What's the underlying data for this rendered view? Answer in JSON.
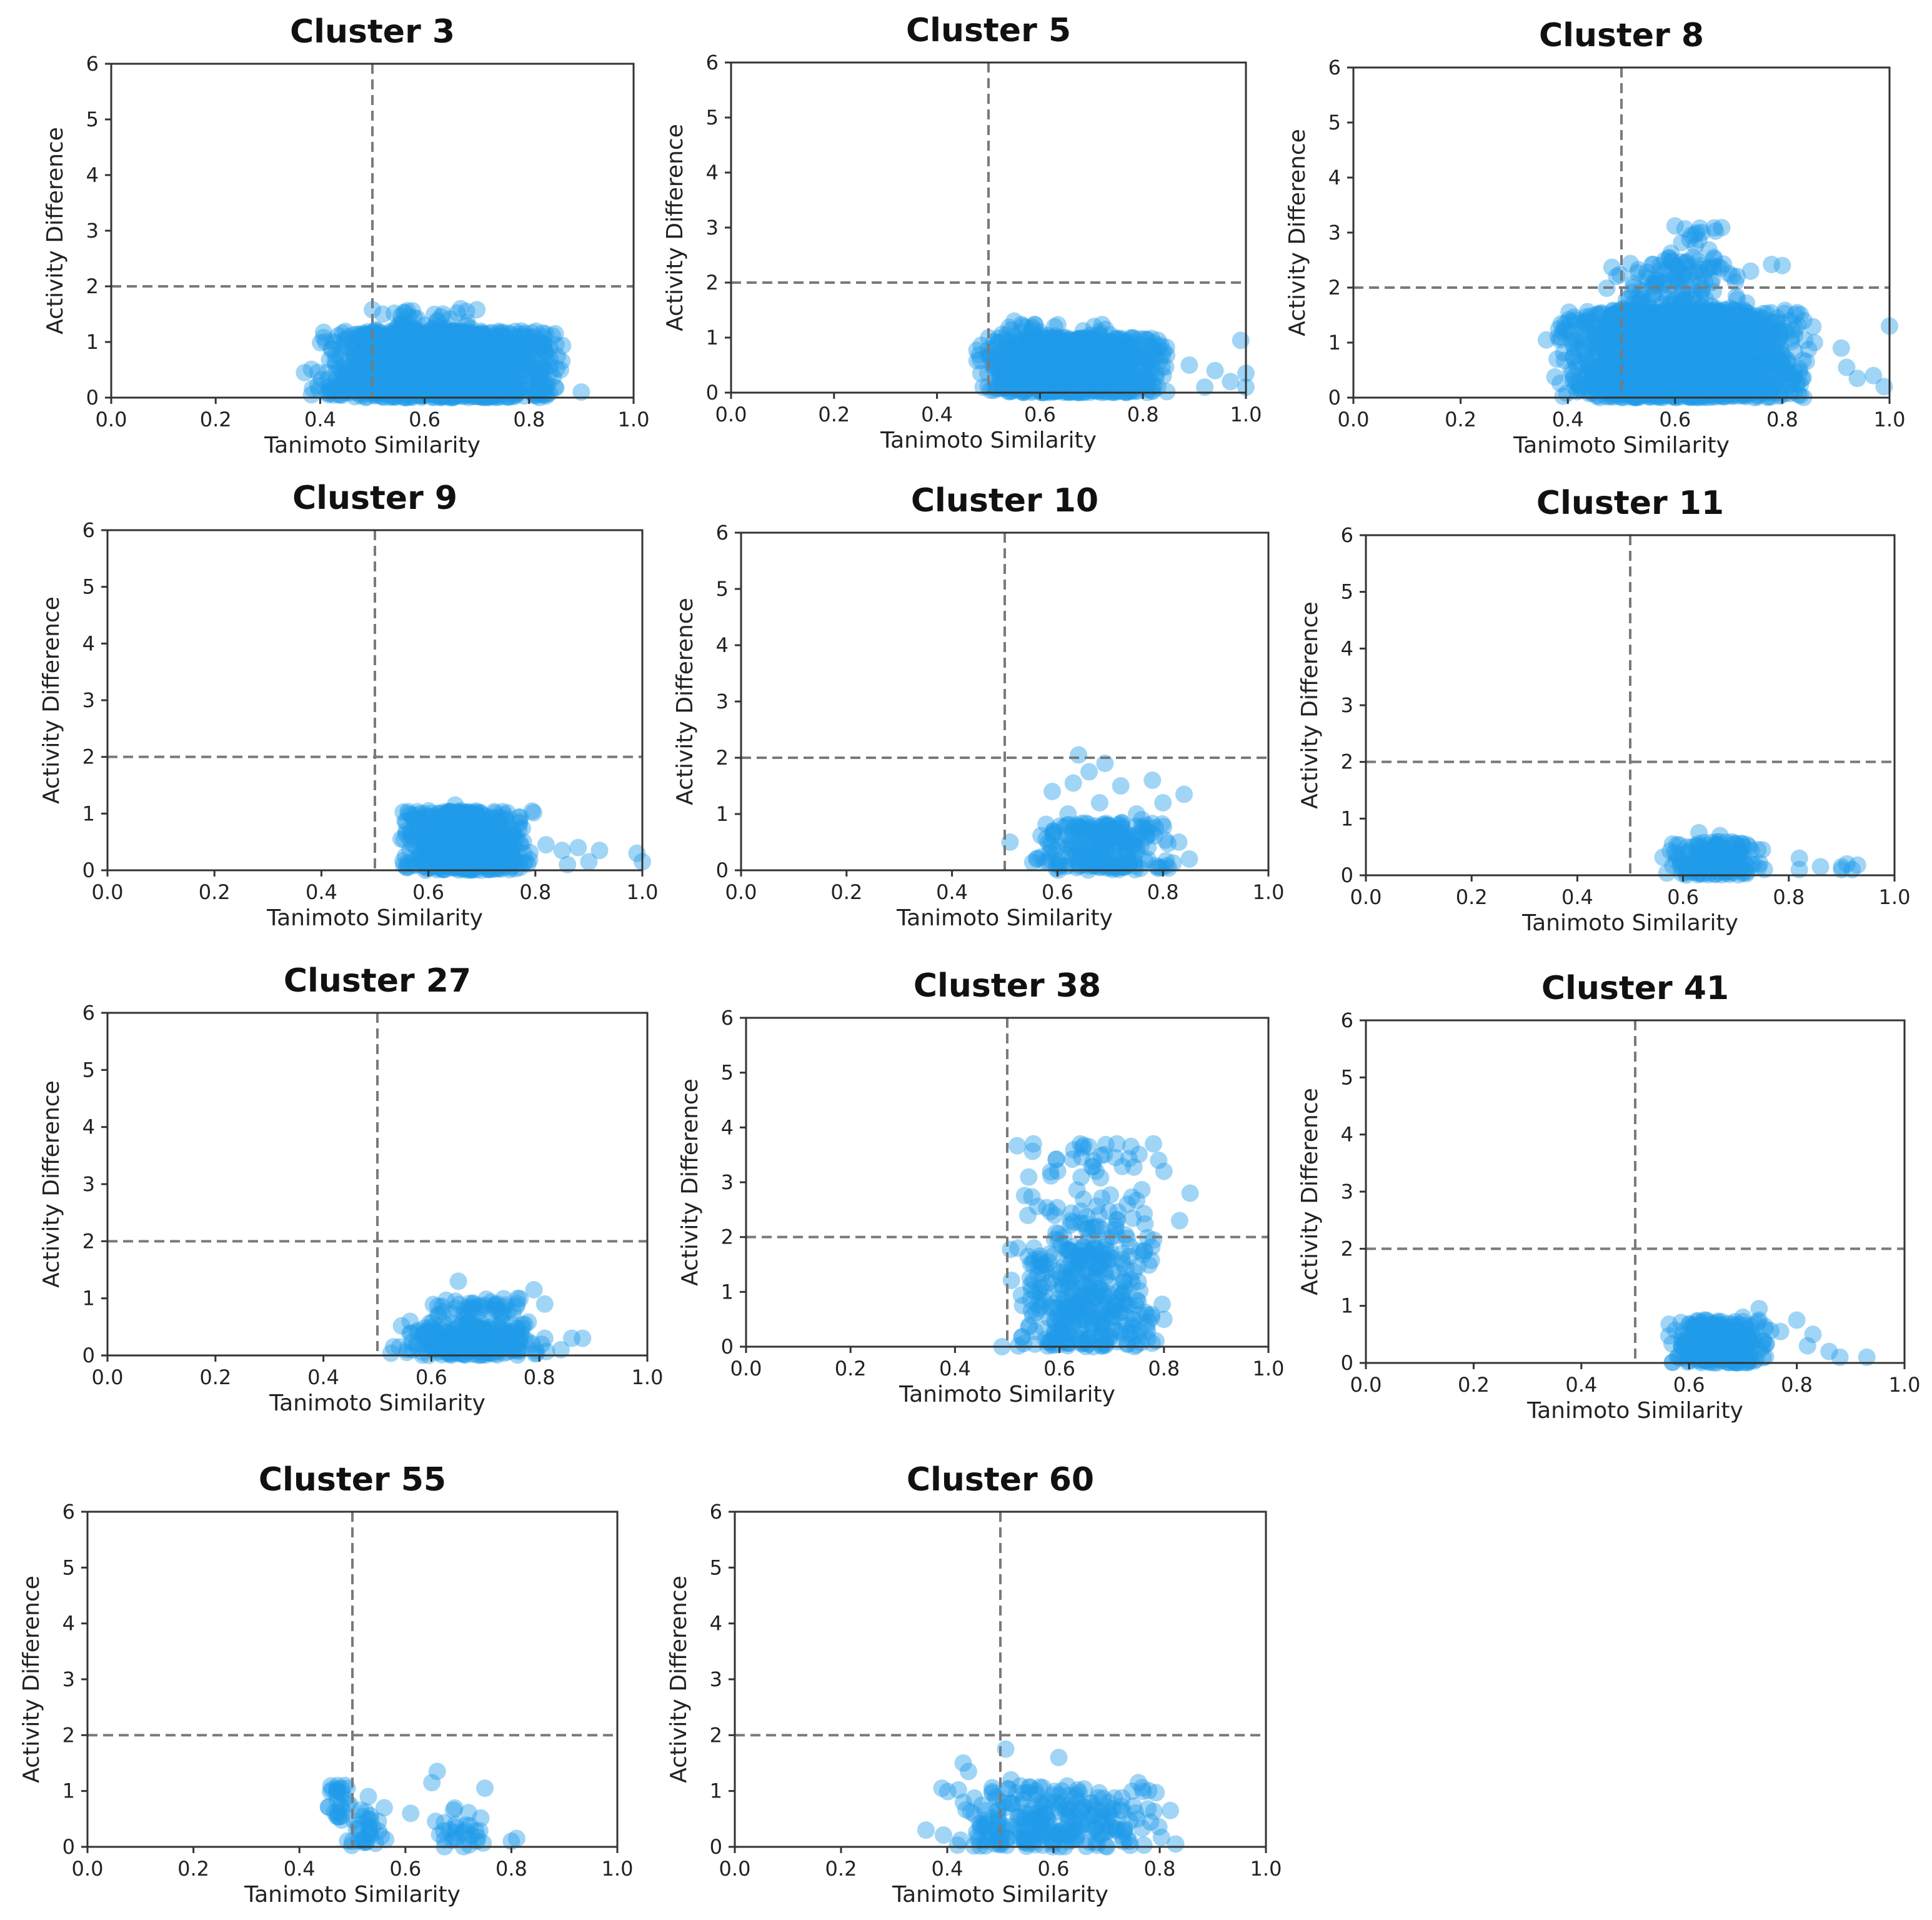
{
  "chart_data": [
    {
      "type": "scatter",
      "title": "Cluster 3",
      "xlabel": "Tanimoto Similarity",
      "ylabel": "Activity Difference",
      "xlim": [
        0.0,
        1.0
      ],
      "ylim": [
        0,
        6
      ],
      "xticks": [
        "0.0",
        "0.2",
        "0.4",
        "0.6",
        "0.8",
        "1.0"
      ],
      "yticks": [
        "0",
        "1",
        "2",
        "3",
        "4",
        "5",
        "6"
      ],
      "thresholds": {
        "x": 0.5,
        "y": 2
      },
      "clusters": [
        {
          "x": [
            0.38,
            0.88
          ],
          "y": [
            0,
            1.2
          ],
          "n": 1400
        },
        {
          "x": [
            0.5,
            0.72
          ],
          "y": [
            0.9,
            1.6
          ],
          "n": 90
        }
      ],
      "points": [
        [
          0.5,
          1.58
        ],
        [
          0.52,
          1.5
        ],
        [
          0.68,
          1.55
        ],
        [
          0.7,
          1.58
        ],
        [
          0.9,
          0.1
        ],
        [
          0.86,
          0.5
        ],
        [
          0.84,
          0.7
        ],
        [
          0.37,
          0.45
        ]
      ]
    },
    {
      "type": "scatter",
      "title": "Cluster 5",
      "xlabel": "Tanimoto Similarity",
      "ylabel": "Activity Difference",
      "xlim": [
        0.0,
        1.0
      ],
      "ylim": [
        0,
        6
      ],
      "xticks": [
        "0.0",
        "0.2",
        "0.4",
        "0.6",
        "0.8",
        "1.0"
      ],
      "yticks": [
        "0",
        "1",
        "2",
        "3",
        "4",
        "5",
        "6"
      ],
      "thresholds": {
        "x": 0.5,
        "y": 2
      },
      "clusters": [
        {
          "x": [
            0.47,
            0.86
          ],
          "y": [
            0,
            1.0
          ],
          "n": 1100
        },
        {
          "x": [
            0.5,
            0.75
          ],
          "y": [
            0.8,
            1.25
          ],
          "n": 60
        }
      ],
      "points": [
        [
          0.55,
          1.3
        ],
        [
          0.99,
          0.95
        ],
        [
          1.0,
          0.35
        ],
        [
          1.0,
          0.1
        ],
        [
          0.97,
          0.2
        ],
        [
          0.94,
          0.4
        ],
        [
          0.89,
          0.5
        ],
        [
          0.92,
          0.1
        ]
      ]
    },
    {
      "type": "scatter",
      "title": "Cluster 8",
      "xlabel": "Tanimoto Similarity",
      "ylabel": "Activity Difference",
      "xlim": [
        0.0,
        1.0
      ],
      "ylim": [
        0,
        6
      ],
      "xticks": [
        "0.0",
        "0.2",
        "0.4",
        "0.6",
        "0.8",
        "1.0"
      ],
      "yticks": [
        "0",
        "1",
        "2",
        "3",
        "4",
        "5",
        "6"
      ],
      "thresholds": {
        "x": 0.5,
        "y": 2
      },
      "clusters": [
        {
          "x": [
            0.37,
            0.86
          ],
          "y": [
            0,
            1.6
          ],
          "n": 1800
        },
        {
          "x": [
            0.46,
            0.75
          ],
          "y": [
            1.3,
            2.5
          ],
          "n": 180
        },
        {
          "x": [
            0.56,
            0.7
          ],
          "y": [
            2.3,
            3.1
          ],
          "n": 25
        }
      ],
      "points": [
        [
          0.6,
          3.12
        ],
        [
          0.65,
          3.0
        ],
        [
          0.63,
          2.95
        ],
        [
          0.8,
          2.4
        ],
        [
          0.78,
          2.42
        ],
        [
          0.91,
          0.9
        ],
        [
          0.92,
          0.55
        ],
        [
          0.94,
          0.35
        ],
        [
          0.99,
          0.2
        ],
        [
          1.0,
          1.3
        ],
        [
          0.97,
          0.4
        ],
        [
          0.36,
          1.05
        ],
        [
          0.38,
          0.7
        ],
        [
          0.86,
          1.0
        ],
        [
          0.84,
          1.4
        ]
      ]
    },
    {
      "type": "scatter",
      "title": "Cluster 9",
      "xlabel": "Tanimoto Similarity",
      "ylabel": "Activity Difference",
      "xlim": [
        0.0,
        1.0
      ],
      "ylim": [
        0,
        6
      ],
      "xticks": [
        "0.0",
        "0.2",
        "0.4",
        "0.6",
        "0.8",
        "1.0"
      ],
      "yticks": [
        "0",
        "1",
        "2",
        "3",
        "4",
        "5",
        "6"
      ],
      "thresholds": {
        "x": 0.5,
        "y": 2
      },
      "clusters": [
        {
          "x": [
            0.54,
            0.8
          ],
          "y": [
            0,
            1.05
          ],
          "n": 650
        }
      ],
      "points": [
        [
          0.65,
          1.15
        ],
        [
          0.85,
          0.35
        ],
        [
          0.88,
          0.4
        ],
        [
          0.92,
          0.35
        ],
        [
          0.99,
          0.3
        ],
        [
          1.0,
          0.15
        ],
        [
          0.9,
          0.15
        ],
        [
          0.82,
          0.45
        ],
        [
          0.86,
          0.1
        ]
      ]
    },
    {
      "type": "scatter",
      "title": "Cluster 10",
      "xlabel": "Tanimoto Similarity",
      "ylabel": "Activity Difference",
      "xlim": [
        0.0,
        1.0
      ],
      "ylim": [
        0,
        6
      ],
      "xticks": [
        "0.0",
        "0.2",
        "0.4",
        "0.6",
        "0.8",
        "1.0"
      ],
      "yticks": [
        "0",
        "1",
        "2",
        "3",
        "4",
        "5",
        "6"
      ],
      "thresholds": {
        "x": 0.5,
        "y": 2
      },
      "clusters": [
        {
          "x": [
            0.55,
            0.84
          ],
          "y": [
            0,
            0.85
          ],
          "n": 230
        }
      ],
      "points": [
        [
          0.64,
          2.05
        ],
        [
          0.69,
          1.9
        ],
        [
          0.66,
          1.75
        ],
        [
          0.63,
          1.55
        ],
        [
          0.72,
          1.5
        ],
        [
          0.59,
          1.4
        ],
        [
          0.78,
          1.6
        ],
        [
          0.84,
          1.35
        ],
        [
          0.8,
          1.2
        ],
        [
          0.51,
          0.5
        ],
        [
          0.68,
          1.2
        ],
        [
          0.75,
          1.0
        ],
        [
          0.62,
          1.0
        ],
        [
          0.85,
          0.2
        ],
        [
          0.83,
          0.5
        ],
        [
          0.76,
          0.9
        ]
      ]
    },
    {
      "type": "scatter",
      "title": "Cluster 11",
      "xlabel": "Tanimoto Similarity",
      "ylabel": "Activity Difference",
      "xlim": [
        0.0,
        1.0
      ],
      "ylim": [
        0,
        6
      ],
      "xticks": [
        "0.0",
        "0.2",
        "0.4",
        "0.6",
        "0.8",
        "1.0"
      ],
      "yticks": [
        "0",
        "1",
        "2",
        "3",
        "4",
        "5",
        "6"
      ],
      "thresholds": {
        "x": 0.5,
        "y": 2
      },
      "clusters": [
        {
          "x": [
            0.56,
            0.76
          ],
          "y": [
            0,
            0.6
          ],
          "n": 170
        }
      ],
      "points": [
        [
          0.63,
          0.75
        ],
        [
          0.67,
          0.7
        ],
        [
          0.75,
          0.45
        ],
        [
          0.82,
          0.3
        ],
        [
          0.82,
          0.1
        ],
        [
          0.86,
          0.15
        ],
        [
          0.9,
          0.15
        ],
        [
          0.91,
          0.2
        ],
        [
          0.92,
          0.1
        ],
        [
          0.9,
          0.1
        ],
        [
          0.93,
          0.18
        ],
        [
          0.58,
          0.55
        ]
      ]
    },
    {
      "type": "scatter",
      "title": "Cluster 27",
      "xlabel": "Tanimoto Similarity",
      "ylabel": "Activity Difference",
      "xlim": [
        0.0,
        1.0
      ],
      "ylim": [
        0,
        6
      ],
      "xticks": [
        "0.0",
        "0.2",
        "0.4",
        "0.6",
        "0.8",
        "1.0"
      ],
      "yticks": [
        "0",
        "1",
        "2",
        "3",
        "4",
        "5",
        "6"
      ],
      "thresholds": {
        "x": 0.5,
        "y": 2
      },
      "clusters": [
        {
          "x": [
            0.52,
            0.82
          ],
          "y": [
            0,
            0.6
          ],
          "n": 260
        },
        {
          "x": [
            0.57,
            0.78
          ],
          "y": [
            0.7,
            1.0
          ],
          "n": 45
        }
      ],
      "points": [
        [
          0.65,
          1.3
        ],
        [
          0.79,
          1.15
        ],
        [
          0.81,
          0.9
        ],
        [
          0.86,
          0.3
        ],
        [
          0.88,
          0.3
        ],
        [
          0.84,
          0.1
        ],
        [
          0.53,
          0.15
        ],
        [
          0.81,
          0.3
        ],
        [
          0.76,
          1.0
        ]
      ]
    },
    {
      "type": "scatter",
      "title": "Cluster 38",
      "xlabel": "Tanimoto Similarity",
      "ylabel": "Activity Difference",
      "xlim": [
        0.0,
        1.0
      ],
      "ylim": [
        0,
        6
      ],
      "xticks": [
        "0.0",
        "0.2",
        "0.4",
        "0.6",
        "0.8",
        "1.0"
      ],
      "yticks": [
        "0",
        "1",
        "2",
        "3",
        "4",
        "5",
        "6"
      ],
      "thresholds": {
        "x": 0.5,
        "y": 2
      },
      "clusters": [
        {
          "x": [
            0.5,
            0.8
          ],
          "y": [
            0,
            1.8
          ],
          "n": 330
        },
        {
          "x": [
            0.5,
            0.8
          ],
          "y": [
            1.8,
            3.7
          ],
          "n": 90
        }
      ],
      "points": [
        [
          0.55,
          3.7
        ],
        [
          0.64,
          3.7
        ],
        [
          0.71,
          3.7
        ],
        [
          0.78,
          3.7
        ],
        [
          0.79,
          3.4
        ],
        [
          0.8,
          3.2
        ],
        [
          0.85,
          2.8
        ],
        [
          0.83,
          2.3
        ],
        [
          0.49,
          0.0
        ],
        [
          0.75,
          0.2
        ],
        [
          0.8,
          0.5
        ],
        [
          0.73,
          2.6
        ],
        [
          0.67,
          3.2
        ]
      ]
    },
    {
      "type": "scatter",
      "title": "Cluster 41",
      "xlabel": "Tanimoto Similarity",
      "ylabel": "Activity Difference",
      "xlim": [
        0.0,
        1.0
      ],
      "ylim": [
        0,
        6
      ],
      "xticks": [
        "0.0",
        "0.2",
        "0.4",
        "0.6",
        "0.8",
        "1.0"
      ],
      "yticks": [
        "0",
        "1",
        "2",
        "3",
        "4",
        "5",
        "6"
      ],
      "thresholds": {
        "x": 0.5,
        "y": 2
      },
      "clusters": [
        {
          "x": [
            0.55,
            0.76
          ],
          "y": [
            0,
            0.75
          ],
          "n": 260
        }
      ],
      "points": [
        [
          0.73,
          0.95
        ],
        [
          0.7,
          0.8
        ],
        [
          0.73,
          0.75
        ],
        [
          0.8,
          0.75
        ],
        [
          0.83,
          0.5
        ],
        [
          0.86,
          0.2
        ],
        [
          0.88,
          0.1
        ],
        [
          0.93,
          0.1
        ],
        [
          0.82,
          0.3
        ],
        [
          0.77,
          0.55
        ]
      ]
    },
    {
      "type": "scatter",
      "title": "Cluster 55",
      "xlabel": "Tanimoto Similarity",
      "ylabel": "Activity Difference",
      "xlim": [
        0.0,
        1.0
      ],
      "ylim": [
        0,
        6
      ],
      "xticks": [
        "0.0",
        "0.2",
        "0.4",
        "0.6",
        "0.8",
        "1.0"
      ],
      "yticks": [
        "0",
        "1",
        "2",
        "3",
        "4",
        "5",
        "6"
      ],
      "thresholds": {
        "x": 0.5,
        "y": 2
      },
      "clusters": [
        {
          "x": [
            0.45,
            0.5
          ],
          "y": [
            0.5,
            1.15
          ],
          "n": 25
        },
        {
          "x": [
            0.47,
            0.57
          ],
          "y": [
            0,
            0.7
          ],
          "n": 30
        },
        {
          "x": [
            0.63,
            0.76
          ],
          "y": [
            0,
            0.7
          ],
          "n": 30
        }
      ],
      "points": [
        [
          0.66,
          1.35
        ],
        [
          0.65,
          1.15
        ],
        [
          0.75,
          1.05
        ],
        [
          0.81,
          0.15
        ],
        [
          0.8,
          0.1
        ],
        [
          0.61,
          0.6
        ],
        [
          0.56,
          0.7
        ],
        [
          0.53,
          0.9
        ],
        [
          0.49,
          1.05
        ],
        [
          0.5,
          0.1
        ]
      ]
    },
    {
      "type": "scatter",
      "title": "Cluster 60",
      "xlabel": "Tanimoto Similarity",
      "ylabel": "Activity Difference",
      "xlim": [
        0.0,
        1.0
      ],
      "ylim": [
        0,
        6
      ],
      "xticks": [
        "0.0",
        "0.2",
        "0.4",
        "0.6",
        "0.8",
        "1.0"
      ],
      "yticks": [
        "0",
        "1",
        "2",
        "3",
        "4",
        "5",
        "6"
      ],
      "thresholds": {
        "x": 0.5,
        "y": 2
      },
      "clusters": [
        {
          "x": [
            0.37,
            0.83
          ],
          "y": [
            0,
            1.1
          ],
          "n": 260
        }
      ],
      "points": [
        [
          0.51,
          1.75
        ],
        [
          0.61,
          1.6
        ],
        [
          0.43,
          1.5
        ],
        [
          0.44,
          1.35
        ],
        [
          0.39,
          1.05
        ],
        [
          0.52,
          1.2
        ],
        [
          0.76,
          1.15
        ],
        [
          0.82,
          0.65
        ],
        [
          0.83,
          0.05
        ],
        [
          0.36,
          0.3
        ]
      ]
    }
  ]
}
